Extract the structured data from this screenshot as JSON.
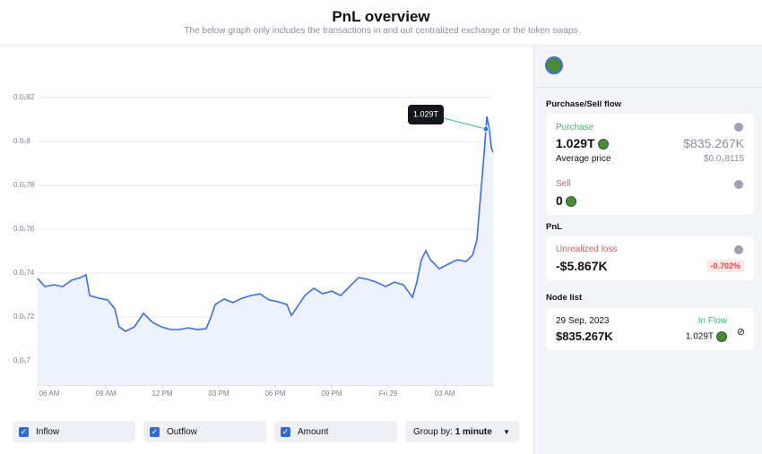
{
  "header": {
    "title": "PnL overview",
    "subtitle": "The below graph only includes the transactions in and out centralized exchange or the token swaps"
  },
  "chart_data": {
    "type": "line",
    "annotation": "1.029T",
    "x": [
      5.38,
      5.76,
      6.24,
      6.71,
      7.19,
      7.67,
      7.95,
      8.14,
      8.62,
      9.1,
      9.48,
      9.71,
      10.05,
      10.52,
      11.0,
      11.48,
      11.95,
      12.43,
      12.9,
      13.38,
      13.86,
      14.33,
      14.57,
      14.81,
      15.29,
      15.76,
      16.24,
      16.71,
      17.19,
      17.67,
      18.14,
      18.62,
      18.86,
      19.1,
      19.57,
      20.05,
      20.52,
      21.0,
      21.48,
      21.95,
      22.43,
      22.9,
      23.38,
      23.86,
      24.33,
      24.81,
      25.29,
      25.52,
      25.76,
      26.0,
      26.24,
      26.71,
      27.19,
      27.67,
      28.14,
      28.48,
      28.71,
      28.86,
      29.1,
      29.24,
      29.38,
      29.48,
      29.57
    ],
    "series": [
      {
        "color": "#3a6fe0",
        "values": [
          7.376e-07,
          7.339e-07,
          7.347e-07,
          7.339e-07,
          7.368e-07,
          7.38e-07,
          7.392e-07,
          7.298e-07,
          7.286e-07,
          7.278e-07,
          7.237e-07,
          7.155e-07,
          7.135e-07,
          7.155e-07,
          7.217e-07,
          7.176e-07,
          7.155e-07,
          7.143e-07,
          7.143e-07,
          7.151e-07,
          7.143e-07,
          7.147e-07,
          7.196e-07,
          7.257e-07,
          7.282e-07,
          7.266e-07,
          7.286e-07,
          7.298e-07,
          7.306e-07,
          7.278e-07,
          7.27e-07,
          7.257e-07,
          7.208e-07,
          7.237e-07,
          7.298e-07,
          7.331e-07,
          7.306e-07,
          7.318e-07,
          7.298e-07,
          7.339e-07,
          7.38e-07,
          7.372e-07,
          7.359e-07,
          7.339e-07,
          7.359e-07,
          7.347e-07,
          7.29e-07,
          7.359e-07,
          7.461e-07,
          7.502e-07,
          7.461e-07,
          7.42e-07,
          7.441e-07,
          7.461e-07,
          7.453e-07,
          7.482e-07,
          7.551e-07,
          7.706e-07,
          7.951e-07,
          8.114e-07,
          8.053e-07,
          7.971e-07,
          7.951e-07
        ]
      }
    ],
    "xlim": [
      5.38,
      29.57
    ],
    "xticks": [
      {
        "value": 6,
        "label": "06 AM"
      },
      {
        "value": 9,
        "label": "09 AM"
      },
      {
        "value": 12,
        "label": "12 PM"
      },
      {
        "value": 15,
        "label": "03 PM"
      },
      {
        "value": 18,
        "label": "06 PM"
      },
      {
        "value": 21,
        "label": "09 PM"
      },
      {
        "value": 24,
        "label": "Fri 29"
      },
      {
        "value": 27,
        "label": "03 AM"
      }
    ],
    "ylim": [
      6.89e-07,
      8.4e-07
    ],
    "yticks": [
      {
        "value": 8.2e-07,
        "label": "0.0₆82"
      },
      {
        "value": 8e-07,
        "label": "0.0₆8"
      },
      {
        "value": 7.8e-07,
        "label": "0.0₆78"
      },
      {
        "value": 7.6e-07,
        "label": "0.0₆76"
      },
      {
        "value": 7.4e-07,
        "label": "0.0₆74"
      },
      {
        "value": 7.2e-07,
        "label": "0.0₆72"
      },
      {
        "value": 7e-07,
        "label": "0.0₆7"
      }
    ],
    "grid": true
  },
  "controls": {
    "inflow": "Inflow",
    "outflow": "Outflow",
    "amount": "Amount",
    "group_by_label": "Group by:",
    "group_by_value": "1 minute"
  },
  "side": {
    "flow_heading": "Purchase/Sell flow",
    "purchase_label": "Purchase",
    "purchase_amount": "1.029T",
    "purchase_value": "$835.267K",
    "avg_label": "Average price",
    "avg_value": "$0.0₆8115",
    "sell_label": "Sell",
    "sell_amount": "0",
    "pnl_heading": "PnL",
    "unrealized_label": "Unrealized loss",
    "unrealized_value": "-$5.867K",
    "unrealized_pct": "-0.702%",
    "node_heading": "Node list",
    "node_date": "29 Sep, 2023",
    "node_type": "In Flow",
    "node_value": "$835.267K",
    "node_amount": "1.029T"
  }
}
